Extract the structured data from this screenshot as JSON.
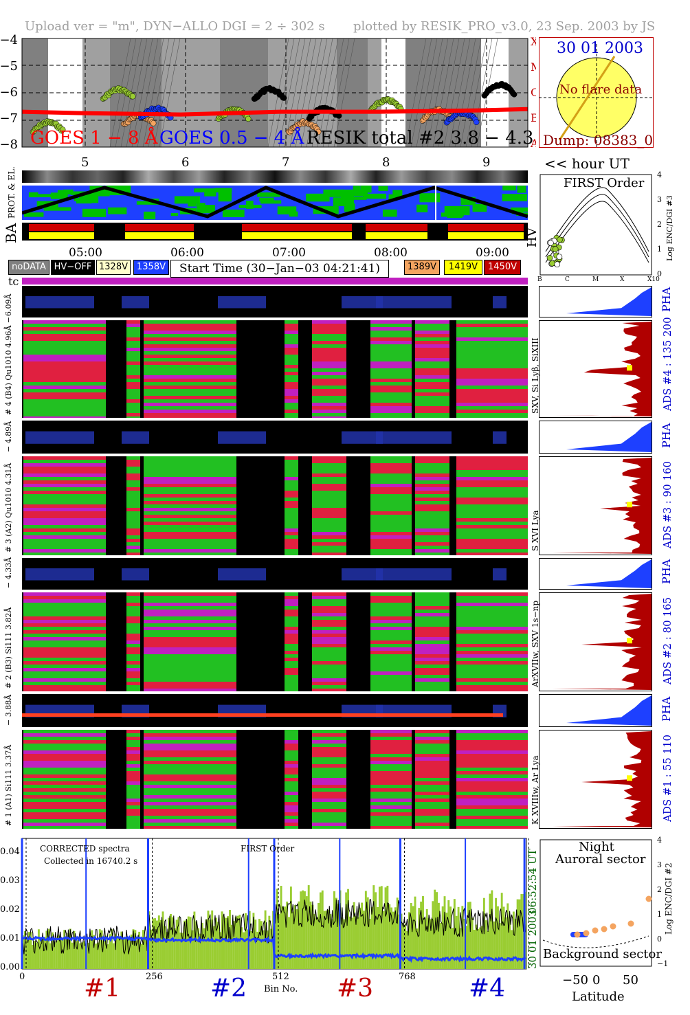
{
  "header": {
    "left": "Upload ver = \"m\", DYN−ALLO DGI =   2 ÷ 302 s",
    "right": "plotted by RESIK_PRO_v3.0, 23 Sep. 2003 by JS"
  },
  "goes": {
    "yticks": [
      "−4",
      "−5",
      "−6",
      "−7",
      "−8"
    ],
    "classes": [
      "X",
      "M",
      "C",
      "B",
      "A"
    ],
    "label_goes18": "GOES 1 − 8 Å",
    "label_goes054": "GOES 0.5 − 4 Å",
    "label_resik": "RESIK total #2  3.8 − 4.3 Å",
    "hour_ticks": [
      "5",
      "6",
      "7",
      "8",
      "9"
    ],
    "hour_unit": "<< hour UT",
    "colors": {
      "goes18": "#ff0000",
      "goes054": "#0000ff",
      "resik_green": "#9acd32",
      "resik_orange": "#f4a460",
      "resik_blue": "#1e40ff",
      "resik_black": "#000000"
    }
  },
  "sun": {
    "date": "30 01 2003",
    "status": "No flare data",
    "dump": "Dump: 08383_0"
  },
  "orbit": {
    "labels": [
      "PROT. & EL.",
      "BA"
    ],
    "time_ticks": [
      "05:00",
      "06:00",
      "07:00",
      "08:00",
      "09:00"
    ]
  },
  "first_order": {
    "title": "FIRST Order",
    "yticks": [
      "4",
      "3",
      "2",
      "1",
      "0"
    ],
    "ylabel": "Log ENC/DGI #3",
    "xticks": [
      "B",
      "C",
      "M",
      "X",
      "X10"
    ],
    "hv_label": "HV"
  },
  "legend": {
    "items": [
      {
        "label": "noDATA",
        "bg": "#808080",
        "fg": "#ffffff"
      },
      {
        "label": "HV−OFF",
        "bg": "#000000",
        "fg": "#ffffff"
      },
      {
        "label": "1328V",
        "bg": "#ffffcc",
        "fg": "#000000"
      },
      {
        "label": "1358V",
        "bg": "#1e40ff",
        "fg": "#ffffff"
      },
      {
        "label": "1389V",
        "bg": "#f4a460",
        "fg": "#000000"
      },
      {
        "label": "1419V",
        "bg": "#ffff00",
        "fg": "#000000"
      },
      {
        "label": "1450V",
        "bg": "#c00000",
        "fg": "#ffffff"
      }
    ],
    "start_time": "Start Time (30−Jan−03 04:21:41)",
    "tc": "tc"
  },
  "channels": [
    {
      "pha_label": "6.09Å",
      "main_label": "# 4 (B4)  Qu1010  4.96Å −",
      "lines": "SXV, Si Lyβ, SiXIII",
      "ads": "ADS #4 :   135 200",
      "pha": "PHA"
    },
    {
      "pha_label": "− 4.89Å",
      "main_label": "# 3 (A2)  Qu1010  4.31Å",
      "lines": "S XVI Lya",
      "ads": "ADS #3 :   90 160",
      "pha": "PHA"
    },
    {
      "pha_label": "− 4.33Å",
      "main_label": "# 2 (B3)  Si111  3.82Å",
      "lines": "ArXVIIw, SXV 1s−np",
      "ads": "ADS #2 :   80 165",
      "pha": "PHA"
    },
    {
      "pha_label": "− 3.88Å",
      "main_label": "# 1 (A1)  Si111  3.37Å",
      "lines": "K XVIIIw, Ar Lya",
      "ads": "ADS #1 :   55 110",
      "pha": "PHA"
    }
  ],
  "spectrum": {
    "note1": "CORRECTED spectra",
    "note2": "Collected in 16740.2 s",
    "title": "FIRST Order",
    "yticks": [
      "0.04",
      "0.03",
      "0.02",
      "0.01",
      "0.00"
    ],
    "xticks": [
      "0",
      "256",
      "512",
      "768"
    ],
    "xlabel": "Bin No.",
    "time": "06:52:54 UT",
    "date": "30 01 2003",
    "segments": [
      "#1",
      "#2",
      "#3",
      "#4"
    ]
  },
  "latitude": {
    "title1": "Night",
    "title2": "Auroral sector",
    "bottom": "Background sector",
    "yticks": [
      "4",
      "3",
      "2",
      "1",
      "0",
      "−1"
    ],
    "ylabel": "Log ENC/DGI #2",
    "xticks": [
      "−50",
      "0",
      "50"
    ],
    "xlabel": "Latitude"
  },
  "chart_data": [
    {
      "type": "line",
      "title": "",
      "ylabel": "",
      "ylim": [
        -8,
        -4
      ],
      "x": [
        4.4,
        5.0,
        6.0,
        7.0,
        8.0,
        9.0,
        9.5
      ],
      "series": [
        {
          "name": "GOES 1 − 8 Å",
          "values": [
            -6.7,
            -6.75,
            -6.8,
            -6.7,
            -6.7,
            -6.65,
            -6.6
          ]
        }
      ]
    },
    {
      "type": "line",
      "title": "",
      "xlabel": "Bin No.",
      "ylim": [
        0,
        0.045
      ],
      "x": [
        0,
        64,
        128,
        192,
        256,
        320,
        384,
        448,
        512,
        576,
        640,
        704,
        768,
        832,
        896,
        960,
        1024
      ],
      "series": [
        {
          "name": "",
          "values": [
            0.008,
            0.009,
            0.01,
            0.011,
            0.004,
            0.012,
            0.014,
            0.016,
            0.019,
            0.02,
            0.018,
            0.017,
            0.004,
            0.018,
            0.015,
            0.01,
            0.006
          ]
        }
      ]
    },
    {
      "type": "scatter",
      "title": "",
      "xlabel": "Latitude",
      "ylabel": "Log ENC/DGI #2",
      "x": [
        -20,
        -10,
        0,
        10,
        20,
        40,
        60
      ],
      "y": [
        0.2,
        0.25,
        0.35,
        0.4,
        0.5,
        0.6,
        1.5
      ]
    }
  ]
}
